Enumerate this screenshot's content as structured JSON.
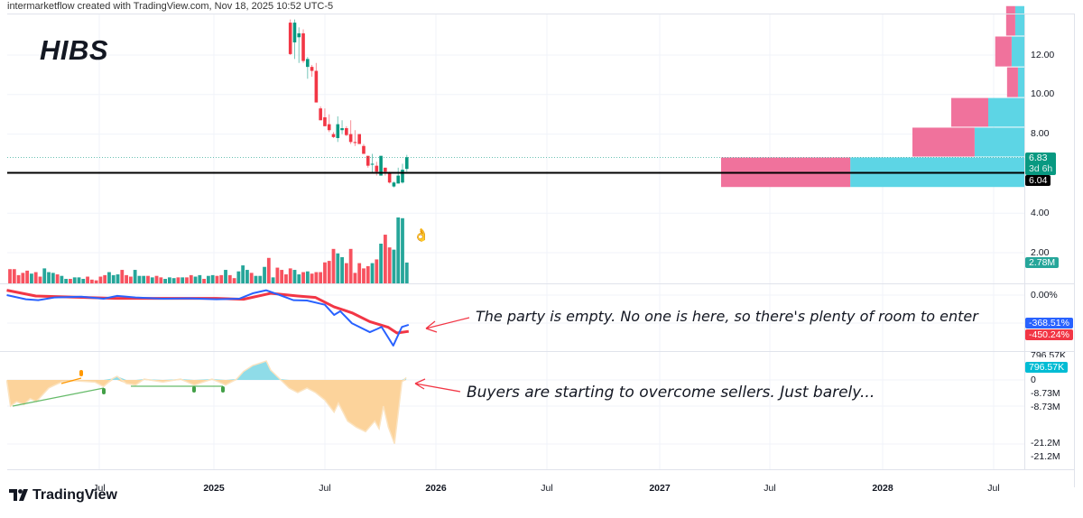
{
  "header": {
    "attribution": "intermarketflow created with TradingView.com, Nov 18, 2025 10:52 UTC-5",
    "symbol": "HIBS"
  },
  "brand": {
    "logo_text": "TradingView"
  },
  "colors": {
    "up": "#089981",
    "down": "#f23645",
    "roc_fast": "#2962ff",
    "roc_slow": "#f23645",
    "osc_neg": "#fcd39b",
    "osc_pos": "#8fdce8",
    "profile_up": "#5dd5e5",
    "profile_down": "#f0729c"
  },
  "price_axis": {
    "ticks": [
      "12.00",
      "10.00",
      "8.00",
      "4.00",
      "2.00"
    ],
    "last_price": "6.83",
    "countdown": "3d 6h",
    "hline_price": "6.04",
    "volume_last": "2.78M"
  },
  "roc_axis": {
    "zero": "0.00%",
    "fast_value": "-368.51%",
    "slow_value": "-450.24%"
  },
  "osc_axis": {
    "labels": [
      "796.57K",
      "0",
      "-8.73M",
      "-8.73M",
      "-21.2M",
      "-21.2M"
    ],
    "value": "796.57K"
  },
  "time_axis": [
    {
      "label": "Jul",
      "bold": false
    },
    {
      "label": "2025",
      "bold": true
    },
    {
      "label": "Jul",
      "bold": false
    },
    {
      "label": "2026",
      "bold": true
    },
    {
      "label": "Jul",
      "bold": false
    },
    {
      "label": "2027",
      "bold": true
    },
    {
      "label": "Jul",
      "bold": false
    },
    {
      "label": "2028",
      "bold": true
    },
    {
      "label": "Jul",
      "bold": false
    }
  ],
  "annotations": {
    "roc_note": "The party is empty. No one is here, so there's plenty of room to enter",
    "osc_note": "Buyers are starting to overcome sellers. Just barely...",
    "emoji": "👌"
  },
  "chart_data": {
    "type": "candlestick",
    "title": "HIBS",
    "interval": "1W",
    "hline": 6.04,
    "price_ylim": [
      1.0,
      14.5
    ],
    "grid": true,
    "candles": [
      [
        "2025-05-05",
        13.64,
        13.8,
        12.0,
        12.05
      ],
      [
        "2025-05-12",
        12.64,
        13.8,
        11.8,
        13.64
      ],
      [
        "2025-05-19",
        12.9,
        13.4,
        11.6,
        13.1
      ],
      [
        "2025-05-26",
        13.1,
        13.3,
        11.6,
        11.7
      ],
      [
        "2025-06-02",
        11.4,
        11.9,
        10.8,
        11.8
      ],
      [
        "2025-06-09",
        11.4,
        11.5,
        10.9,
        11.2
      ],
      [
        "2025-06-16",
        11.2,
        11.6,
        9.6,
        9.6
      ],
      [
        "2025-06-23",
        9.3,
        9.4,
        8.7,
        8.7
      ],
      [
        "2025-06-30",
        8.85,
        9.3,
        8.4,
        8.4
      ],
      [
        "2025-07-07",
        8.5,
        9.0,
        8.1,
        8.2
      ],
      [
        "2025-07-14",
        8.0,
        8.1,
        7.8,
        7.85
      ],
      [
        "2025-07-21",
        7.8,
        8.9,
        7.6,
        8.5
      ],
      [
        "2025-07-28",
        8.2,
        8.7,
        8.0,
        8.3
      ],
      [
        "2025-08-04",
        8.3,
        8.4,
        7.9,
        7.95
      ],
      [
        "2025-08-11",
        8.0,
        8.7,
        7.5,
        7.6
      ],
      [
        "2025-08-18",
        7.6,
        8.2,
        7.4,
        7.55
      ],
      [
        "2025-08-25",
        8.0,
        8.0,
        7.5,
        7.5
      ],
      [
        "2025-09-01",
        7.4,
        7.5,
        7.0,
        7.0
      ],
      [
        "2025-09-08",
        6.9,
        6.9,
        6.3,
        6.4
      ],
      [
        "2025-09-15",
        6.45,
        7.0,
        6.0,
        6.5
      ],
      [
        "2025-09-22",
        6.4,
        6.6,
        5.9,
        6.1
      ],
      [
        "2025-09-29",
        5.9,
        6.9,
        5.9,
        6.9
      ],
      [
        "2025-10-06",
        6.3,
        6.3,
        5.9,
        6.1
      ],
      [
        "2025-10-13",
        6.0,
        6.1,
        5.5,
        5.55
      ],
      [
        "2025-10-20",
        5.35,
        5.6,
        5.3,
        5.55
      ],
      [
        "2025-10-27",
        5.5,
        6.3,
        5.5,
        5.9
      ],
      [
        "2025-11-03",
        5.55,
        6.5,
        5.5,
        6.2
      ],
      [
        "2025-11-10",
        6.24,
        6.95,
        6.1,
        6.83
      ]
    ],
    "volume_unit": "M",
    "volume": [
      [
        1.9,
        "down"
      ],
      [
        1.9,
        "down"
      ],
      [
        1.1,
        "down"
      ],
      [
        1.4,
        "down"
      ],
      [
        1.7,
        "down"
      ],
      [
        1.3,
        "up"
      ],
      [
        1.5,
        "down"
      ],
      [
        0.9,
        "down"
      ],
      [
        2.0,
        "up"
      ],
      [
        1.5,
        "up"
      ],
      [
        1.4,
        "up"
      ],
      [
        1.2,
        "down"
      ],
      [
        1.0,
        "up"
      ],
      [
        0.6,
        "up"
      ],
      [
        0.6,
        "down"
      ],
      [
        0.8,
        "up"
      ],
      [
        0.8,
        "up"
      ],
      [
        0.6,
        "up"
      ],
      [
        0.9,
        "down"
      ],
      [
        0.5,
        "down"
      ],
      [
        0.4,
        "down"
      ],
      [
        0.9,
        "down"
      ],
      [
        1.1,
        "down"
      ],
      [
        1.5,
        "up"
      ],
      [
        1.1,
        "up"
      ],
      [
        1.2,
        "up"
      ],
      [
        1.8,
        "down"
      ],
      [
        1.1,
        "down"
      ],
      [
        0.9,
        "down"
      ],
      [
        1.8,
        "up"
      ],
      [
        1.0,
        "up"
      ],
      [
        1.0,
        "up"
      ],
      [
        1.0,
        "down"
      ],
      [
        0.8,
        "up"
      ],
      [
        1.0,
        "down"
      ],
      [
        0.8,
        "down"
      ],
      [
        0.6,
        "up"
      ],
      [
        0.8,
        "up"
      ],
      [
        0.7,
        "up"
      ],
      [
        0.8,
        "down"
      ],
      [
        0.8,
        "up"
      ],
      [
        0.8,
        "down"
      ],
      [
        1.1,
        "down"
      ],
      [
        0.9,
        "up"
      ],
      [
        1.1,
        "up"
      ],
      [
        0.6,
        "down"
      ],
      [
        1.0,
        "up"
      ],
      [
        1.1,
        "up"
      ],
      [
        1.0,
        "down"
      ],
      [
        1.1,
        "down"
      ],
      [
        1.8,
        "up"
      ],
      [
        1.1,
        "down"
      ],
      [
        0.7,
        "down"
      ],
      [
        1.6,
        "up"
      ],
      [
        2.4,
        "up"
      ],
      [
        1.8,
        "up"
      ],
      [
        1.4,
        "down"
      ],
      [
        1.0,
        "up"
      ],
      [
        1.0,
        "up"
      ],
      [
        2.2,
        "up"
      ],
      [
        3.4,
        "down"
      ],
      [
        0.8,
        "up"
      ],
      [
        2.1,
        "down"
      ],
      [
        1.8,
        "down"
      ],
      [
        1.2,
        "down"
      ],
      [
        2.0,
        "down"
      ],
      [
        1.8,
        "up"
      ],
      [
        1.2,
        "up"
      ],
      [
        1.5,
        "down"
      ],
      [
        1.6,
        "up"
      ],
      [
        1.3,
        "down"
      ],
      [
        1.5,
        "down"
      ],
      [
        1.5,
        "down"
      ],
      [
        2.8,
        "down"
      ],
      [
        3.0,
        "down"
      ],
      [
        4.6,
        "down"
      ],
      [
        4.0,
        "up"
      ],
      [
        3.5,
        "up"
      ],
      [
        2.7,
        "down"
      ],
      [
        4.6,
        "down"
      ],
      [
        1.4,
        "down"
      ],
      [
        2.7,
        "down"
      ],
      [
        2.0,
        "down"
      ],
      [
        2.3,
        "down"
      ],
      [
        2.7,
        "up"
      ],
      [
        3.2,
        "down"
      ],
      [
        5.3,
        "up"
      ],
      [
        6.5,
        "down"
      ],
      [
        4.8,
        "down"
      ],
      [
        4.5,
        "up"
      ],
      [
        8.8,
        "up"
      ],
      [
        8.7,
        "up"
      ],
      [
        2.78,
        "up"
      ]
    ],
    "volume_profile": {
      "unit": "% of largest row",
      "rows": [
        {
          "low": 5.3,
          "high": 6.84,
          "up": 57.4,
          "down": 42.6
        },
        {
          "low": 6.84,
          "high": 8.35,
          "up": 16.4,
          "down": 20.5
        },
        {
          "low": 8.35,
          "high": 9.85,
          "up": 11.9,
          "down": 12.2
        },
        {
          "low": 9.85,
          "high": 11.4,
          "up": 2.1,
          "down": 3.6
        },
        {
          "low": 11.4,
          "high": 12.96,
          "up": 4.2,
          "down": 5.4
        },
        {
          "low": 12.96,
          "high": 14.5,
          "up": 3.0,
          "down": 3.0
        }
      ]
    },
    "roc": {
      "unit": "%",
      "fast": [
        [
          "2024-01-31",
          0
        ],
        [
          "2024-03-02",
          -52
        ],
        [
          "2024-03-22",
          -63
        ],
        [
          "2024-04-17",
          -30
        ],
        [
          "2024-05-31",
          -20
        ],
        [
          "2024-07-06",
          -45
        ],
        [
          "2024-07-28",
          -10
        ],
        [
          "2024-08-27",
          -30
        ],
        [
          "2024-10-10",
          -45
        ],
        [
          "2024-11-22",
          -40
        ],
        [
          "2025-01-05",
          -52
        ],
        [
          "2025-02-11",
          -45
        ],
        [
          "2025-03-05",
          22
        ],
        [
          "2025-03-27",
          60
        ],
        [
          "2025-04-18",
          0
        ],
        [
          "2025-05-10",
          -63
        ],
        [
          "2025-06-01",
          -67
        ],
        [
          "2025-06-30",
          -120
        ],
        [
          "2025-07-15",
          -246
        ],
        [
          "2025-07-25",
          -200
        ],
        [
          "2025-08-13",
          -350
        ],
        [
          "2025-09-11",
          -460
        ],
        [
          "2025-09-23",
          -420
        ],
        [
          "2025-09-30",
          -395
        ],
        [
          "2025-10-19",
          -627
        ],
        [
          "2025-11-02",
          -395
        ],
        [
          "2025-11-13",
          -368.51
        ]
      ],
      "slow": [
        [
          "2024-01-31",
          60
        ],
        [
          "2024-03-18",
          -11
        ],
        [
          "2024-07-28",
          -41
        ],
        [
          "2025-01-05",
          -41
        ],
        [
          "2025-02-18",
          -52
        ],
        [
          "2025-04-03",
          22
        ],
        [
          "2025-05-17",
          -11
        ],
        [
          "2025-06-15",
          -30
        ],
        [
          "2025-07-15",
          -146
        ],
        [
          "2025-08-13",
          -220
        ],
        [
          "2025-09-11",
          -330
        ],
        [
          "2025-10-11",
          -400
        ],
        [
          "2025-10-25",
          -470
        ],
        [
          "2025-11-13",
          -450.24
        ]
      ]
    },
    "oscillator": {
      "unit": "M",
      "values": [
        [
          "2024-01-31",
          -0.2
        ],
        [
          "2024-02-06",
          -8.7
        ],
        [
          "2024-02-16",
          -7.2
        ],
        [
          "2024-02-28",
          -8.2
        ],
        [
          "2024-03-09",
          -6.2
        ],
        [
          "2024-03-19",
          -7.2
        ],
        [
          "2024-04-08",
          -2.7
        ],
        [
          "2024-04-18",
          -1.7
        ],
        [
          "2024-04-29",
          -0.7
        ],
        [
          "2024-05-21",
          -0.3
        ],
        [
          "2024-06-22",
          -0.7
        ],
        [
          "2024-07-06",
          -2.2
        ],
        [
          "2024-07-21",
          0.5
        ],
        [
          "2024-07-28",
          1.2
        ],
        [
          "2024-08-12",
          -1.2
        ],
        [
          "2024-08-27",
          -1.7
        ],
        [
          "2024-09-10",
          0.3
        ],
        [
          "2024-10-10",
          -0.7
        ],
        [
          "2024-11-08",
          0.3
        ],
        [
          "2024-11-30",
          -1.7
        ],
        [
          "2024-12-29",
          0.3
        ],
        [
          "2025-01-20",
          -1.7
        ],
        [
          "2025-02-07",
          0.3
        ],
        [
          "2025-02-18",
          2.8
        ],
        [
          "2025-03-05",
          4.8
        ],
        [
          "2025-03-20",
          5.8
        ],
        [
          "2025-03-27",
          6.3
        ],
        [
          "2025-04-03",
          3.3
        ],
        [
          "2025-04-18",
          0.3
        ],
        [
          "2025-05-03",
          -2.7
        ],
        [
          "2025-05-17",
          -4.2
        ],
        [
          "2025-06-01",
          -2.7
        ],
        [
          "2025-06-15",
          -4.2
        ],
        [
          "2025-06-30",
          -6.7
        ],
        [
          "2025-07-15",
          -10.7
        ],
        [
          "2025-07-22",
          -7.7
        ],
        [
          "2025-08-06",
          -13.7
        ],
        [
          "2025-08-20",
          -15.7
        ],
        [
          "2025-09-04",
          -17.2
        ],
        [
          "2025-09-19",
          -13.7
        ],
        [
          "2025-09-26",
          -16.2
        ],
        [
          "2025-10-03",
          -8.7
        ],
        [
          "2025-10-11",
          -15.7
        ],
        [
          "2025-10-21",
          -21.2
        ],
        [
          "2025-11-02",
          -0.7
        ],
        [
          "2025-11-09",
          0.797
        ]
      ]
    }
  }
}
